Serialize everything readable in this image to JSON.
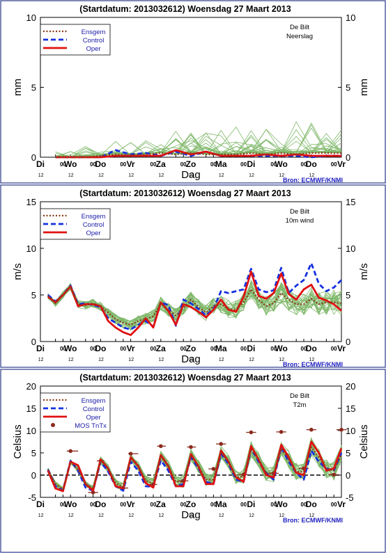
{
  "chart_data": [
    {
      "type": "line",
      "title": "(Startdatum: 2013032612)   Woensdag  27 Maart     2013",
      "station": "De Bilt",
      "parameter": "Neerslag",
      "ylabel": "mm",
      "xlabel": "Dag",
      "source": "Bron: ECMWF/KNMI",
      "ylim": [
        0,
        10
      ],
      "yticks": [
        0,
        5,
        10
      ],
      "x_ticks": [
        {
          "x": 0,
          "label": "Di"
        },
        {
          "x": 12,
          "label": "12"
        },
        {
          "x": 18,
          "label": "00"
        },
        {
          "x": 24,
          "label": "Wo"
        },
        {
          "x": 36,
          "label": "12"
        },
        {
          "x": 42,
          "label": "00"
        },
        {
          "x": 48,
          "label": "Do"
        },
        {
          "x": 60,
          "label": "12"
        },
        {
          "x": 66,
          "label": "00"
        },
        {
          "x": 72,
          "label": "Vr"
        },
        {
          "x": 84,
          "label": "12"
        },
        {
          "x": 90,
          "label": "00"
        },
        {
          "x": 96,
          "label": "Za"
        },
        {
          "x": 108,
          "label": "12"
        },
        {
          "x": 114,
          "label": "00"
        },
        {
          "x": 120,
          "label": "Zo"
        },
        {
          "x": 132,
          "label": "12"
        },
        {
          "x": 138,
          "label": "00"
        },
        {
          "x": 144,
          "label": "Ma"
        },
        {
          "x": 156,
          "label": "12"
        },
        {
          "x": 162,
          "label": "00"
        },
        {
          "x": 168,
          "label": "Di"
        },
        {
          "x": 180,
          "label": "12"
        },
        {
          "x": 186,
          "label": "00"
        },
        {
          "x": 192,
          "label": "Wo"
        },
        {
          "x": 204,
          "label": "12"
        },
        {
          "x": 210,
          "label": "00"
        },
        {
          "x": 216,
          "label": "Do"
        },
        {
          "x": 228,
          "label": "12"
        },
        {
          "x": 234,
          "label": "00"
        },
        {
          "x": 240,
          "label": "Vr"
        }
      ],
      "x": [
        12,
        24,
        36,
        48,
        60,
        72,
        84,
        96,
        108,
        120,
        132,
        144,
        156,
        168,
        180,
        192,
        204,
        216,
        228,
        240
      ],
      "series": [
        {
          "name": "Ensgem",
          "color": "#8b3a1a",
          "dash": "dotted",
          "values": [
            0,
            0,
            0,
            0.1,
            0.2,
            0.15,
            0.2,
            0.3,
            0.2,
            0.3,
            0.2,
            0.2,
            0.2,
            0.3,
            0.2,
            0.3,
            0.2,
            0.3,
            0.3,
            0.3
          ]
        },
        {
          "name": "Control",
          "color": "#1530e0",
          "dash": "dashed",
          "values": [
            0,
            0,
            0,
            0,
            0.5,
            0.2,
            0.3,
            0.1,
            0.4,
            0.1,
            0.4,
            0.1,
            0.1,
            0.1,
            0.1,
            0.1,
            0.1,
            0,
            0.1,
            0.1
          ]
        },
        {
          "name": "Oper",
          "color": "#e01010",
          "dash": "solid",
          "values": [
            0,
            0,
            0,
            0,
            0.1,
            0.1,
            0.1,
            0.1,
            0.5,
            0.2,
            0.4,
            0.1,
            0.1,
            0.1,
            0.2,
            0.1,
            0.2,
            0.1,
            0.1,
            0.1
          ]
        }
      ],
      "ensemble_color": "#7fb86a",
      "legend_placement": "top-left"
    },
    {
      "type": "line",
      "title": "(Startdatum: 2013032612)   Woensdag  27 Maart     2013",
      "station": "De Bilt",
      "parameter": "10m wind",
      "ylabel": "m/s",
      "xlabel": "Dag",
      "source": "Bron: ECMWF/KNMI",
      "ylim": [
        0,
        15
      ],
      "yticks": [
        0,
        5,
        10,
        15
      ],
      "x": [
        6,
        12,
        18,
        24,
        30,
        36,
        42,
        48,
        54,
        60,
        66,
        72,
        78,
        84,
        90,
        96,
        102,
        108,
        114,
        120,
        126,
        132,
        138,
        144,
        150,
        156,
        162,
        168,
        174,
        180,
        186,
        192,
        198,
        204,
        210,
        216,
        222,
        228,
        234,
        240
      ],
      "series": [
        {
          "name": "Ensgem",
          "color": "#8b3a1a",
          "dash": "dotted",
          "values": [
            4.9,
            4.1,
            5.0,
            5.9,
            4.0,
            3.9,
            4.1,
            3.8,
            3.1,
            2.4,
            2.0,
            1.8,
            2.2,
            2.4,
            2.7,
            4.1,
            3.4,
            2.8,
            3.6,
            4.5,
            3.7,
            3.1,
            3.8,
            4.0,
            3.5,
            3.4,
            4.2,
            5.6,
            4.5,
            3.8,
            4.1,
            5.2,
            4.5,
            4.0,
            4.0,
            4.6,
            4.0,
            4.2,
            4.2,
            4.1
          ]
        },
        {
          "name": "Control",
          "color": "#1530e0",
          "dash": "dashed",
          "values": [
            5.0,
            4.3,
            5.0,
            6.0,
            4.0,
            4.1,
            3.9,
            3.7,
            2.5,
            2.0,
            1.5,
            1.3,
            1.8,
            2.2,
            1.6,
            4.2,
            3.9,
            1.7,
            4.5,
            4.1,
            3.5,
            2.8,
            3.5,
            5.4,
            5.2,
            5.4,
            5.6,
            7.8,
            5.6,
            5.3,
            5.5,
            7.9,
            5.2,
            6.0,
            6.6,
            8.4,
            6.2,
            5.4,
            5.8,
            6.6
          ]
        },
        {
          "name": "Oper",
          "color": "#e01010",
          "dash": "solid",
          "values": [
            4.8,
            4.2,
            5.0,
            5.9,
            3.8,
            4.0,
            4.0,
            3.8,
            2.2,
            1.5,
            1.0,
            0.7,
            1.5,
            2.5,
            1.5,
            4.2,
            3.3,
            1.8,
            4.0,
            3.7,
            3.2,
            2.6,
            3.4,
            4.5,
            3.4,
            3.2,
            4.8,
            7.5,
            4.9,
            4.6,
            5.2,
            7.3,
            5.1,
            4.5,
            5.6,
            6.1,
            4.7,
            4.4,
            4.0,
            3.3
          ]
        }
      ],
      "ensemble_color": "#7fb86a",
      "legend_placement": "top-left"
    },
    {
      "type": "line",
      "title": "(Startdatum: 2013032612)   Woensdag  27 Maart     2013",
      "station": "De Bilt",
      "parameter": "T2m",
      "ylabel": "Celsius",
      "xlabel": "Dag",
      "source": "Bron: ECMWF/KNMI",
      "ylim": [
        -5,
        20
      ],
      "yticks": [
        -5,
        0,
        5,
        10,
        15,
        20
      ],
      "x": [
        6,
        12,
        18,
        24,
        30,
        36,
        42,
        48,
        54,
        60,
        66,
        72,
        78,
        84,
        90,
        96,
        102,
        108,
        114,
        120,
        126,
        132,
        138,
        144,
        150,
        156,
        162,
        168,
        174,
        180,
        186,
        192,
        198,
        204,
        210,
        216,
        222,
        228,
        234,
        240
      ],
      "series": [
        {
          "name": "Ensgem",
          "color": "#8b3a1a",
          "dash": "dotted",
          "values": [
            1.2,
            -2.0,
            -3.2,
            2.9,
            1.2,
            -2.0,
            -3.0,
            3.3,
            1.5,
            -1.8,
            -2.8,
            3.8,
            2.0,
            -1.3,
            -1.8,
            4.2,
            2.0,
            -1.5,
            -1.5,
            4.5,
            2.0,
            -1.0,
            -1.0,
            5.0,
            3.0,
            -0.5,
            -0.3,
            5.8,
            3.5,
            0.5,
            0.3,
            6.0,
            3.5,
            0.8,
            0.7,
            6.3,
            4.0,
            1.5,
            1.0,
            4.5
          ]
        },
        {
          "name": "Control",
          "color": "#1530e0",
          "dash": "dashed",
          "values": [
            1.3,
            -2.5,
            -3.4,
            3.2,
            1.0,
            -2.8,
            -3.5,
            3.0,
            0.8,
            -2.5,
            -3.5,
            3.0,
            1.0,
            -2.5,
            -2.6,
            3.3,
            1.0,
            -2.5,
            -2.0,
            4.0,
            1.5,
            -1.5,
            -2.0,
            4.8,
            2.5,
            -1.0,
            -1.5,
            6.0,
            3.0,
            0.5,
            -1.0,
            6.2,
            3.0,
            0.5,
            -1.0,
            5.5,
            3.0,
            1.5,
            1.0,
            5.0
          ]
        },
        {
          "name": "Oper",
          "color": "#e01010",
          "dash": "solid",
          "values": [
            1.0,
            -3.0,
            -3.6,
            3.0,
            2.2,
            -2.0,
            -3.5,
            3.5,
            1.5,
            -2.5,
            -3.0,
            4.0,
            2.0,
            -1.8,
            -2.8,
            4.5,
            2.0,
            -2.5,
            -2.5,
            4.7,
            2.0,
            -2.0,
            -2.0,
            5.5,
            3.0,
            -0.5,
            -1.5,
            6.5,
            3.5,
            0.0,
            -0.5,
            6.8,
            4.0,
            0.5,
            0.0,
            7.5,
            5.0,
            1.0,
            1.5,
            6.0
          ]
        }
      ],
      "mos": {
        "name": "MOS TnTx",
        "color": "#8b2b1e",
        "points": [
          {
            "x": 24,
            "y": 5.4,
            "range": [
              21,
              30
            ]
          },
          {
            "x": 42,
            "y": -3.9,
            "range": [
              38,
              46
            ]
          },
          {
            "x": 48,
            "y": 3.2,
            "range": [
              45,
              51
            ]
          },
          {
            "x": 66,
            "y": -2.9,
            "range": [
              62,
              70
            ]
          },
          {
            "x": 72,
            "y": 4.8,
            "range": [
              70,
              78
            ]
          },
          {
            "x": 90,
            "y": -2.1,
            "range": [
              86,
              93
            ]
          },
          {
            "x": 96,
            "y": 6.5,
            "range": [
              93,
              100
            ]
          },
          {
            "x": 114,
            "y": -1.3,
            "range": [
              110,
              118
            ]
          },
          {
            "x": 120,
            "y": 6.3,
            "range": [
              117,
              124
            ]
          },
          {
            "x": 138,
            "y": 1.4,
            "range": [
              134,
              141
            ]
          },
          {
            "x": 144,
            "y": 7.0,
            "range": [
              140,
              148
            ]
          },
          {
            "x": 162,
            "y": 0.1,
            "range": [
              158,
              166
            ]
          },
          {
            "x": 168,
            "y": 9.6,
            "range": [
              164,
              172
            ]
          },
          {
            "x": 186,
            "y": 0.4,
            "range": [
              182,
              190
            ]
          },
          {
            "x": 192,
            "y": 9.7,
            "range": [
              188,
              196
            ]
          },
          {
            "x": 210,
            "y": 1.5,
            "range": [
              206,
              214
            ]
          },
          {
            "x": 216,
            "y": 10.2,
            "range": [
              212,
              220
            ]
          },
          {
            "x": 234,
            "y": 0.1,
            "range": [
              230,
              238
            ]
          },
          {
            "x": 240,
            "y": 10.2,
            "range": [
              236,
              244
            ]
          }
        ]
      },
      "ensemble_color": "#7fb86a",
      "legend_placement": "top-left"
    }
  ]
}
